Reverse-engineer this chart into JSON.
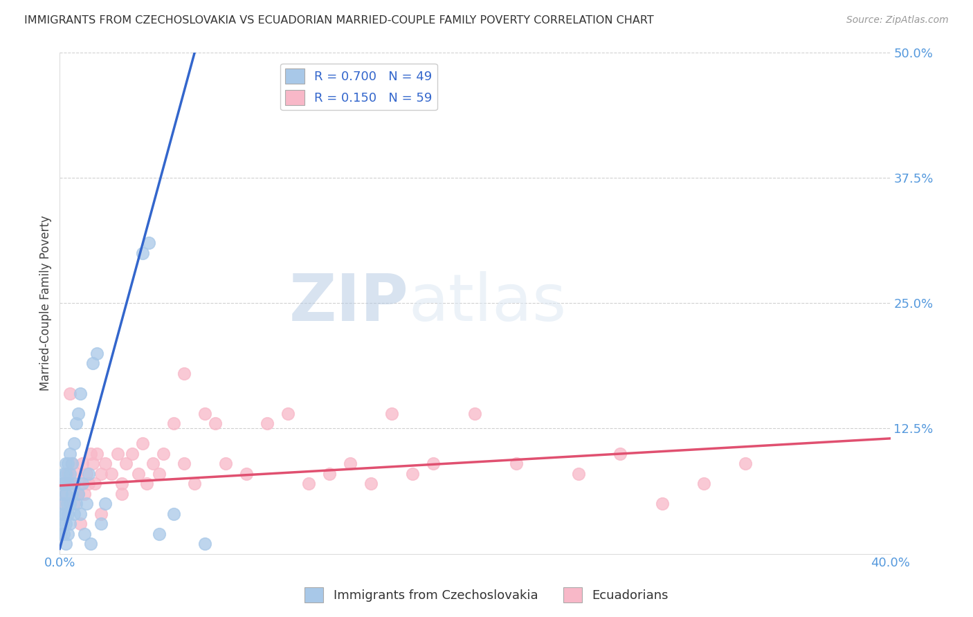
{
  "title": "IMMIGRANTS FROM CZECHOSLOVAKIA VS ECUADORIAN MARRIED-COUPLE FAMILY POVERTY CORRELATION CHART",
  "source": "Source: ZipAtlas.com",
  "ylabel": "Married-Couple Family Poverty",
  "blue_R": 0.7,
  "blue_N": 49,
  "pink_R": 0.15,
  "pink_N": 59,
  "blue_color": "#a8c8e8",
  "blue_edge_color": "#a8c8e8",
  "blue_line_color": "#3366cc",
  "pink_color": "#f8b8c8",
  "pink_edge_color": "#f8b8c8",
  "pink_line_color": "#e05070",
  "legend_blue_label": "Immigrants from Czechoslovakia",
  "legend_pink_label": "Ecuadorians",
  "watermark_zip": "ZIP",
  "watermark_atlas": "atlas",
  "xlim": [
    0.0,
    0.4
  ],
  "ylim": [
    0.0,
    0.5
  ],
  "blue_points_x": [
    0.0005,
    0.001,
    0.001,
    0.0015,
    0.0015,
    0.002,
    0.002,
    0.002,
    0.0025,
    0.0025,
    0.003,
    0.003,
    0.003,
    0.003,
    0.003,
    0.0035,
    0.004,
    0.004,
    0.004,
    0.004,
    0.005,
    0.005,
    0.005,
    0.005,
    0.006,
    0.006,
    0.007,
    0.007,
    0.007,
    0.008,
    0.008,
    0.009,
    0.009,
    0.01,
    0.01,
    0.011,
    0.012,
    0.013,
    0.014,
    0.015,
    0.016,
    0.018,
    0.02,
    0.022,
    0.04,
    0.043,
    0.048,
    0.055,
    0.07
  ],
  "blue_points_y": [
    0.02,
    0.04,
    0.06,
    0.03,
    0.07,
    0.02,
    0.05,
    0.08,
    0.04,
    0.07,
    0.01,
    0.03,
    0.06,
    0.08,
    0.09,
    0.05,
    0.02,
    0.04,
    0.07,
    0.09,
    0.03,
    0.05,
    0.08,
    0.1,
    0.06,
    0.09,
    0.04,
    0.07,
    0.11,
    0.05,
    0.13,
    0.06,
    0.14,
    0.04,
    0.16,
    0.07,
    0.02,
    0.05,
    0.08,
    0.01,
    0.19,
    0.2,
    0.03,
    0.05,
    0.3,
    0.31,
    0.02,
    0.04,
    0.01
  ],
  "pink_points_x": [
    0.001,
    0.002,
    0.003,
    0.004,
    0.005,
    0.006,
    0.007,
    0.008,
    0.009,
    0.01,
    0.011,
    0.012,
    0.013,
    0.014,
    0.015,
    0.016,
    0.017,
    0.018,
    0.02,
    0.022,
    0.025,
    0.028,
    0.03,
    0.032,
    0.035,
    0.038,
    0.04,
    0.042,
    0.045,
    0.048,
    0.05,
    0.055,
    0.06,
    0.065,
    0.07,
    0.075,
    0.08,
    0.09,
    0.1,
    0.11,
    0.12,
    0.13,
    0.14,
    0.15,
    0.16,
    0.17,
    0.18,
    0.2,
    0.22,
    0.25,
    0.27,
    0.29,
    0.31,
    0.33,
    0.005,
    0.01,
    0.02,
    0.03,
    0.06
  ],
  "pink_points_y": [
    0.05,
    0.07,
    0.06,
    0.08,
    0.07,
    0.09,
    0.05,
    0.08,
    0.06,
    0.07,
    0.09,
    0.06,
    0.08,
    0.07,
    0.1,
    0.09,
    0.07,
    0.1,
    0.08,
    0.09,
    0.08,
    0.1,
    0.07,
    0.09,
    0.1,
    0.08,
    0.11,
    0.07,
    0.09,
    0.08,
    0.1,
    0.13,
    0.09,
    0.07,
    0.14,
    0.13,
    0.09,
    0.08,
    0.13,
    0.14,
    0.07,
    0.08,
    0.09,
    0.07,
    0.14,
    0.08,
    0.09,
    0.14,
    0.09,
    0.08,
    0.1,
    0.05,
    0.07,
    0.09,
    0.16,
    0.03,
    0.04,
    0.06,
    0.18
  ],
  "blue_trendline_x": [
    0.0,
    0.065
  ],
  "blue_trendline_y": [
    0.005,
    0.5
  ],
  "pink_trendline_x": [
    0.0,
    0.4
  ],
  "pink_trendline_y": [
    0.068,
    0.115
  ]
}
